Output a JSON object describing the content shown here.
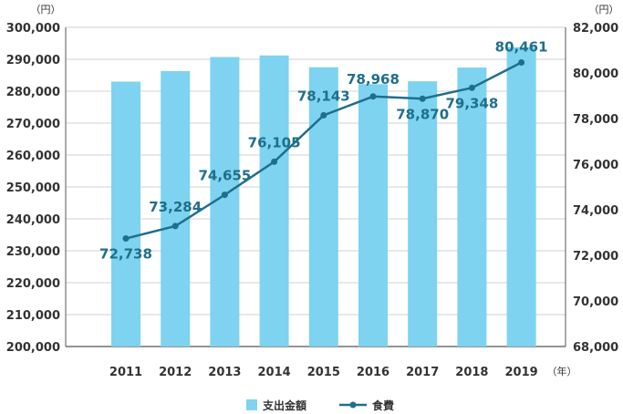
{
  "chart_data": {
    "type": "bar+line",
    "categories": [
      "2011",
      "2012",
      "2013",
      "2014",
      "2015",
      "2016",
      "2017",
      "2018",
      "2019"
    ],
    "x_unit": "（年）",
    "left_axis": {
      "unit": "（円）",
      "ylim": [
        200000,
        300000
      ],
      "ticks": [
        200000,
        210000,
        220000,
        230000,
        240000,
        250000,
        260000,
        270000,
        280000,
        290000,
        300000
      ],
      "tick_labels": [
        "200,000",
        "210,000",
        "220,000",
        "230,000",
        "240,000",
        "250,000",
        "260,000",
        "270,000",
        "280,000",
        "290,000",
        "300,000"
      ]
    },
    "right_axis": {
      "unit": "（円）",
      "ylim": [
        68000,
        82000
      ],
      "ticks": [
        68000,
        70000,
        72000,
        74000,
        76000,
        78000,
        80000,
        82000
      ],
      "tick_labels": [
        "68,000",
        "70,000",
        "72,000",
        "74,000",
        "76,000",
        "78,000",
        "80,000",
        "82,000"
      ]
    },
    "series": [
      {
        "name": "支出金額",
        "type": "bar",
        "axis": "left",
        "color": "#7dd3f0",
        "values": [
          283000,
          286300,
          290700,
          291200,
          287500,
          282200,
          283100,
          287400,
          293800
        ]
      },
      {
        "name": "食費",
        "type": "line",
        "axis": "right",
        "color": "#1f6f8b",
        "values": [
          72738,
          73284,
          74655,
          76105,
          78143,
          78968,
          78870,
          79348,
          80461
        ],
        "labels": [
          "72,738",
          "73,284",
          "74,655",
          "76,105",
          "78,143",
          "78,968",
          "78,870",
          "79,348",
          "80,461"
        ]
      }
    ],
    "grid": "horizontal",
    "legend": "bottom"
  }
}
